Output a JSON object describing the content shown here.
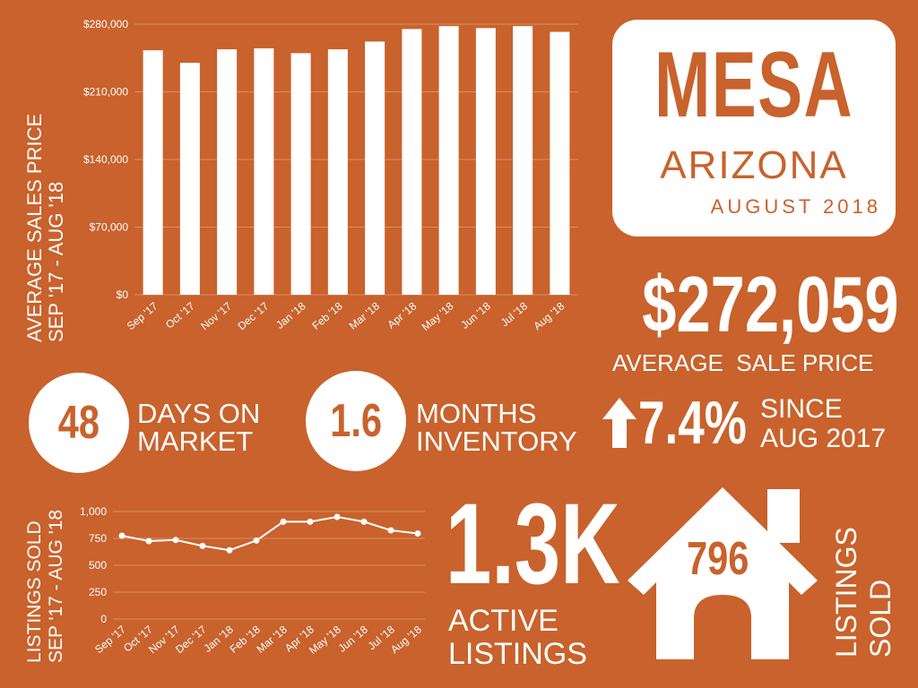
{
  "colors": {
    "background": "#c9622c",
    "foreground": "#ffffff"
  },
  "title": {
    "city": "MESA",
    "state": "ARIZONA",
    "date": "AUGUST 2018"
  },
  "price": {
    "value": "$272,059",
    "label": "AVERAGE  SALE PRICE"
  },
  "stats": {
    "dom_value": "48",
    "dom_line1": "DAYS ON",
    "dom_line2": "MARKET",
    "inv_value": "1.6",
    "inv_line1": "MONTHS",
    "inv_line2": "INVENTORY",
    "change_icon": "arrow-up-icon",
    "change_value": "7.4%",
    "change_line1": "SINCE",
    "change_line2": "AUG 2017"
  },
  "active": {
    "value": "1.3K",
    "line1": "ACTIVE",
    "line2": "LISTINGS"
  },
  "sold": {
    "icon": "house-icon",
    "value": "796",
    "line1": "LISTINGS",
    "line2": "SOLD"
  },
  "chart_data": [
    {
      "type": "bar",
      "ylabel_line1": "AVERAGE SALES PRICE",
      "ylabel_line2": "SEP '17 - AUG '18",
      "categories": [
        "Sep '17",
        "Oct '17",
        "Nov '17",
        "Dec '17",
        "Jan '18",
        "Feb '18",
        "Mar '18",
        "Apr '18",
        "May '18",
        "Jun '18",
        "Jul '18",
        "Aug '18"
      ],
      "values": [
        253000,
        240000,
        254000,
        255000,
        250000,
        254000,
        262000,
        275000,
        278000,
        276000,
        278000,
        272059
      ],
      "yticks": [
        "$0",
        "$70,000",
        "$140,000",
        "$210,000",
        "$280,000"
      ],
      "ylim": [
        0,
        280000
      ],
      "grid": true
    },
    {
      "type": "line",
      "ylabel_line1": "LISTINGS SOLD",
      "ylabel_line2": "SEP '17 - AUG '18",
      "categories": [
        "Sep '17",
        "Oct '17",
        "Nov '17",
        "Dec '17",
        "Jan '18",
        "Feb '18",
        "Mar '18",
        "Apr '18",
        "May '18",
        "Jun '18",
        "Jul '18",
        "Aug '18"
      ],
      "values": [
        775,
        725,
        735,
        680,
        640,
        730,
        905,
        905,
        950,
        905,
        825,
        796
      ],
      "yticks": [
        "0",
        "250",
        "500",
        "750",
        "1,000"
      ],
      "ylim": [
        0,
        1000
      ],
      "grid": true
    }
  ]
}
